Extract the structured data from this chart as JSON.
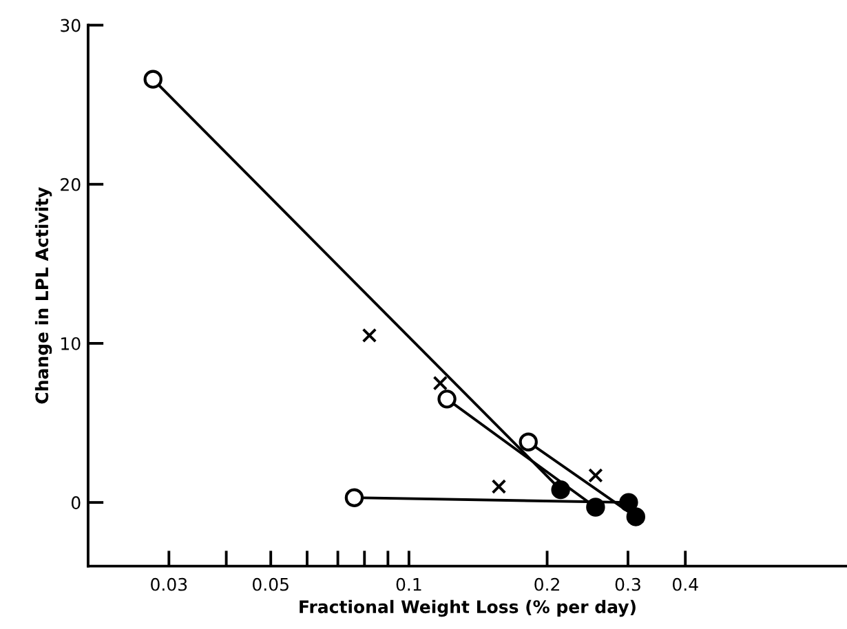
{
  "chart_data": {
    "type": "line",
    "xlabel": "Fractional Weight Loss (% per day)",
    "ylabel": "Change in LPL Activity",
    "log": "x",
    "xlim": [
      0.02,
      0.9
    ],
    "ylim": [
      -4,
      30
    ],
    "xticks": [
      0.03,
      {
        "value": 0.04,
        "label": null
      },
      0.05,
      {
        "value": 0.06,
        "label": null
      },
      {
        "value": 0.07,
        "label": null
      },
      {
        "value": 0.08,
        "label": null
      },
      {
        "value": 0.09,
        "label": null
      },
      0.1,
      0.2,
      0.3,
      0.4
    ],
    "yticks": [
      0,
      10,
      20,
      30
    ],
    "grid": false,
    "series": [
      {
        "color": "#000000",
        "marker": "none",
        "x": [
          0.0277,
          0.214
        ],
        "values": [
          26.6,
          0.8
        ]
      },
      {
        "color": "#000000",
        "marker": "none",
        "x": [
          0.121,
          0.255
        ],
        "values": [
          6.5,
          -0.3
        ]
      },
      {
        "color": "#000000",
        "marker": "none",
        "x": [
          0.182,
          0.312
        ],
        "values": [
          3.8,
          -0.9
        ]
      },
      {
        "color": "#000000",
        "marker": "none",
        "x": [
          0.076,
          0.301
        ],
        "values": [
          0.3,
          0.0
        ]
      },
      {
        "type": "scatter",
        "color": "#ffffff",
        "marker": "circle",
        "x": [
          0.0277,
          0.121,
          0.182,
          0.076
        ],
        "values": [
          26.6,
          6.5,
          3.8,
          0.3
        ]
      },
      {
        "type": "scatter",
        "color": "#000000",
        "marker": "circle",
        "x": [
          0.214,
          0.255,
          0.312,
          0.301
        ],
        "values": [
          0.8,
          -0.3,
          -0.9,
          0.0
        ]
      },
      {
        "type": "scatter",
        "color": "#000000",
        "marker": "cross",
        "x": [
          0.082,
          0.117,
          0.157,
          0.255
        ],
        "values": [
          10.5,
          7.5,
          1.0,
          1.7
        ]
      }
    ]
  }
}
